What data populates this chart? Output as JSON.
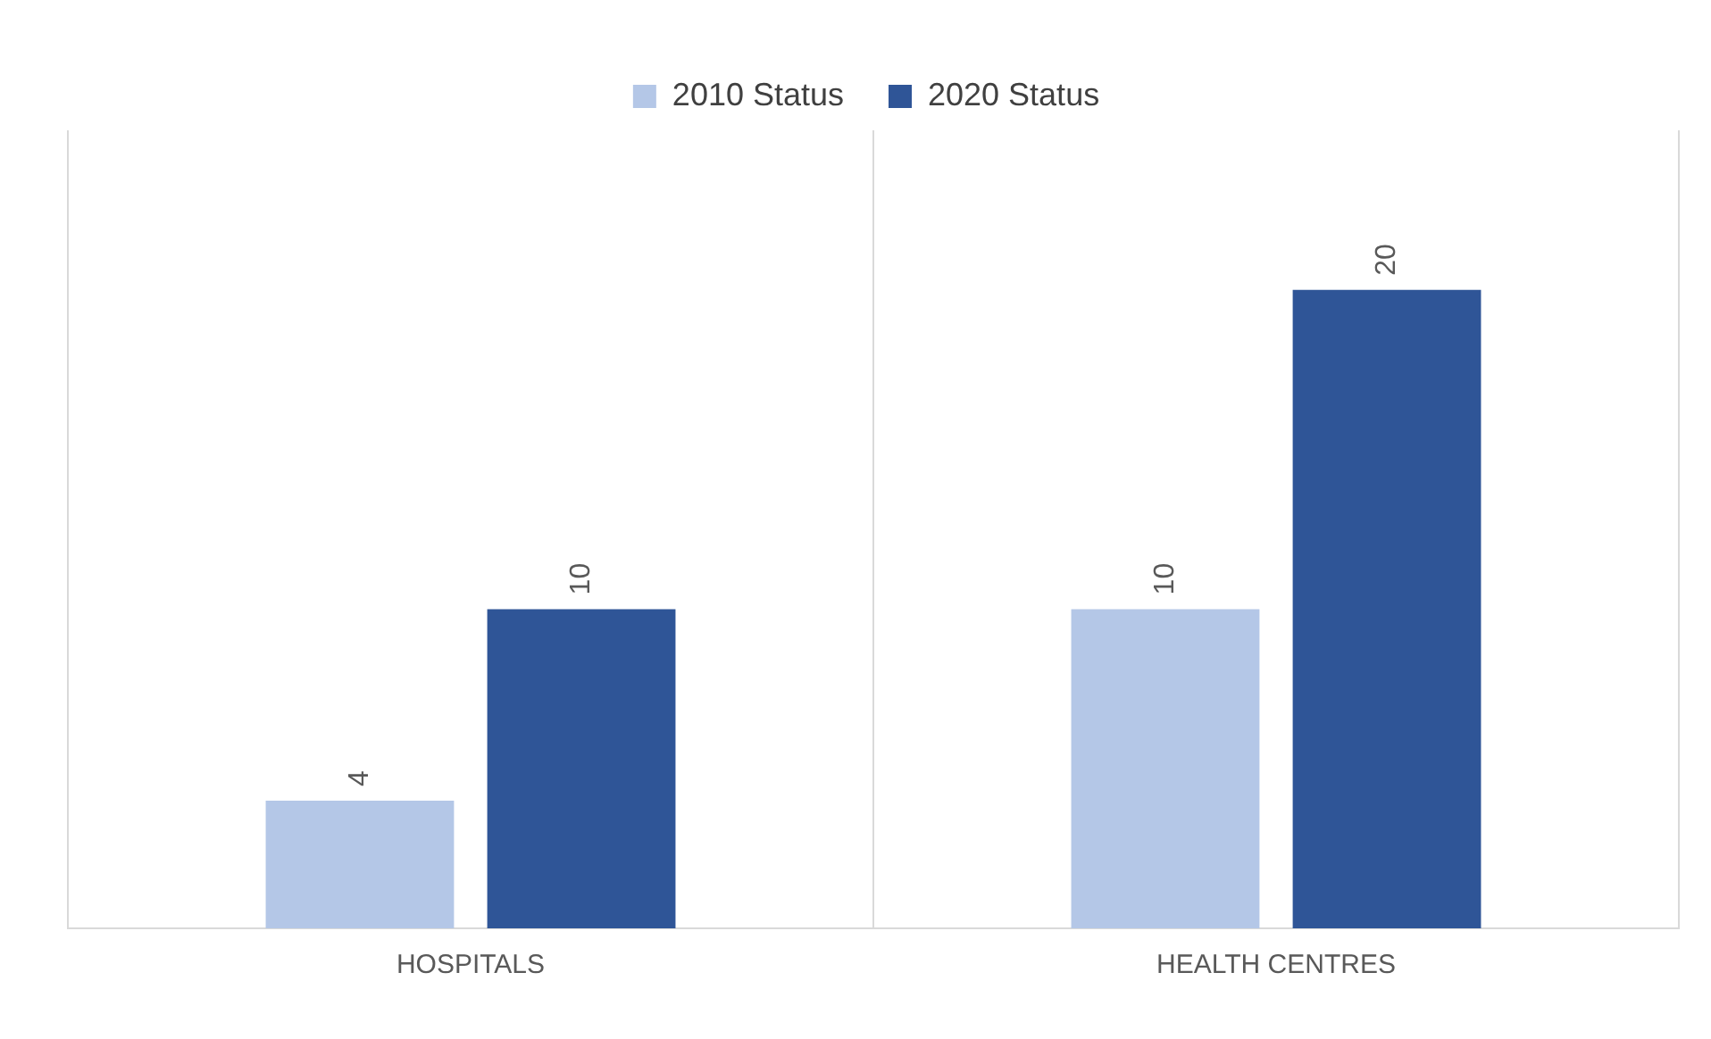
{
  "chart_data": {
    "type": "bar",
    "categories": [
      "HOSPITALS",
      "HEALTH CENTRES"
    ],
    "series": [
      {
        "name": "2010 Status",
        "color": "#b4c7e7",
        "values": [
          4,
          10
        ]
      },
      {
        "name": "2020 Status",
        "color": "#2f5597",
        "values": [
          10,
          20
        ]
      }
    ],
    "data_labels": true,
    "legend": "top",
    "grid": "x",
    "relative": false
  }
}
